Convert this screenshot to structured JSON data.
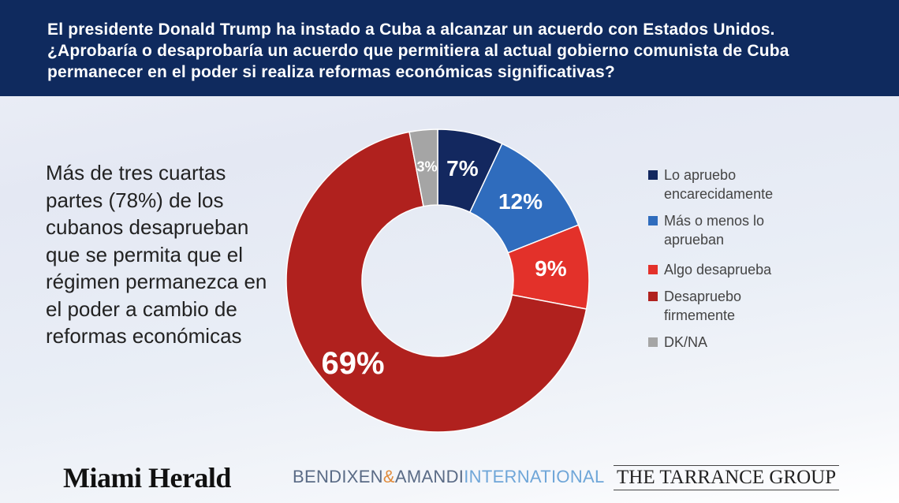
{
  "chart_data": {
    "type": "donut",
    "title": "El presidente Donald Trump ha instado a Cuba a alcanzar un acuerdo con Estados Unidos. ¿Aprobaría o desaprobaría un acuerdo que permitiera al actual gobierno comunista de Cuba permanecer en el poder si realiza reformas económicas significativas?",
    "annotation": "Más de tres cuartas partes (78%) de los cubanos desaprueban que se permita que el régimen permanezca en el poder a cambio de reformas económicas",
    "categories": [
      "Lo apruebo encarecidamente",
      "Más o menos lo aprueban",
      "Algo desaprueba",
      "Desapruebo firmemente",
      "DK/NA"
    ],
    "values": [
      7,
      12,
      9,
      69,
      3
    ],
    "value_labels": [
      "7%",
      "12%",
      "9%",
      "69%",
      "3%"
    ],
    "colors": [
      "#13285f",
      "#2f6cbd",
      "#e3312a",
      "#b0211e",
      "#a5a5a5"
    ]
  },
  "footer": {
    "logos": [
      "Miami Herald",
      [
        "BENDIXEN",
        "&",
        "AMANDI",
        "INTERNATIONAL"
      ],
      "THE TARRANCE GROUP"
    ]
  }
}
